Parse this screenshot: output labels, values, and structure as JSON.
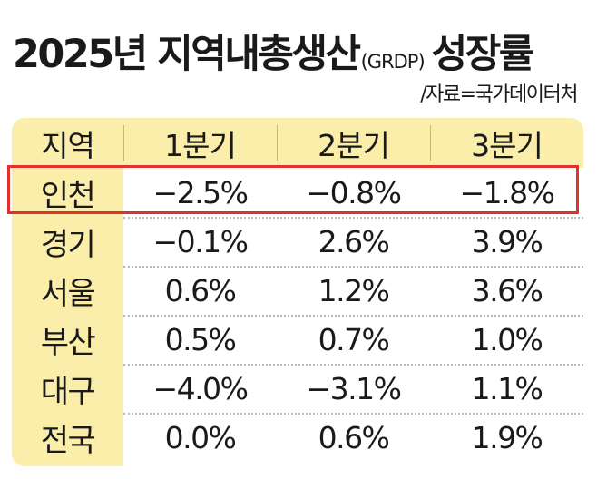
{
  "header": {
    "title_main": "2025년 지역내총생산",
    "title_sub": "(GRDP)",
    "title_tail": "성장률",
    "source": "/자료=국가데이터처"
  },
  "colors": {
    "panel": "#fbeeaa",
    "highlight_border": "#e0322a",
    "text": "#1a1a1a"
  },
  "table": {
    "columns": [
      "지역",
      "1분기",
      "2분기",
      "3분기"
    ],
    "rows": [
      {
        "region": "인천",
        "q1": "−2.5%",
        "q2": "−0.8%",
        "q3": "−1.8%",
        "highlighted": true
      },
      {
        "region": "경기",
        "q1": "−0.1%",
        "q2": "2.6%",
        "q3": "3.9%"
      },
      {
        "region": "서울",
        "q1": "0.6%",
        "q2": "1.2%",
        "q3": "3.6%"
      },
      {
        "region": "부산",
        "q1": "0.5%",
        "q2": "0.7%",
        "q3": "1.0%"
      },
      {
        "region": "대구",
        "q1": "−4.0%",
        "q2": "−3.1%",
        "q3": "1.1%"
      },
      {
        "region": "전국",
        "q1": "0.0%",
        "q2": "0.6%",
        "q3": "1.9%"
      }
    ]
  },
  "chart_data": {
    "type": "table",
    "title": "2025년 지역내총생산(GRDP) 성장률",
    "source": "/자료=국가데이터처",
    "categories": [
      "1분기",
      "2분기",
      "3분기"
    ],
    "unit": "%",
    "series": [
      {
        "name": "인천",
        "values": [
          -2.5,
          -0.8,
          -1.8
        ]
      },
      {
        "name": "경기",
        "values": [
          -0.1,
          2.6,
          3.9
        ]
      },
      {
        "name": "서울",
        "values": [
          0.6,
          1.2,
          3.6
        ]
      },
      {
        "name": "부산",
        "values": [
          0.5,
          0.7,
          1.0
        ]
      },
      {
        "name": "대구",
        "values": [
          -4.0,
          -3.1,
          1.1
        ]
      },
      {
        "name": "전국",
        "values": [
          0.0,
          0.6,
          1.9
        ]
      }
    ],
    "highlighted_series": "인천"
  }
}
